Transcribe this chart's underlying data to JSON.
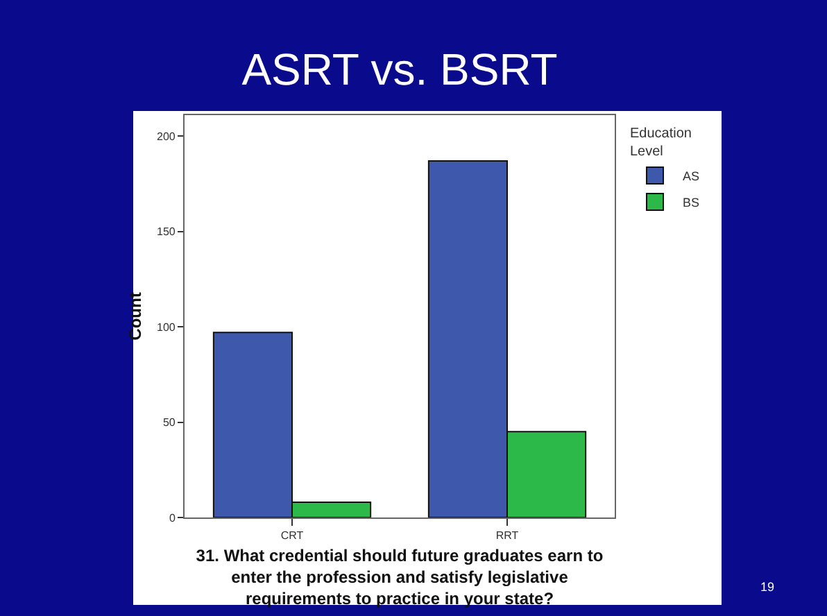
{
  "chart_data": {
    "type": "bar",
    "title": "ASRT vs. BSRT",
    "xlabel": "31. What credential should future graduates earn to enter the profession and satisfy legislative requirements to practice in your state?",
    "ylabel": "Count",
    "legend_title": "Education Level",
    "categories": [
      "CRT",
      "RRT"
    ],
    "series": [
      {
        "name": "AS",
        "color": "#3e58ac",
        "values": [
          97,
          187
        ]
      },
      {
        "name": "BS",
        "color": "#2db84a",
        "values": [
          8,
          45
        ]
      }
    ],
    "ylim": [
      0,
      211
    ],
    "yticks": [
      0,
      50,
      100,
      150,
      200
    ],
    "grid": false,
    "legend": "top right",
    "annotations": [
      "19"
    ]
  }
}
